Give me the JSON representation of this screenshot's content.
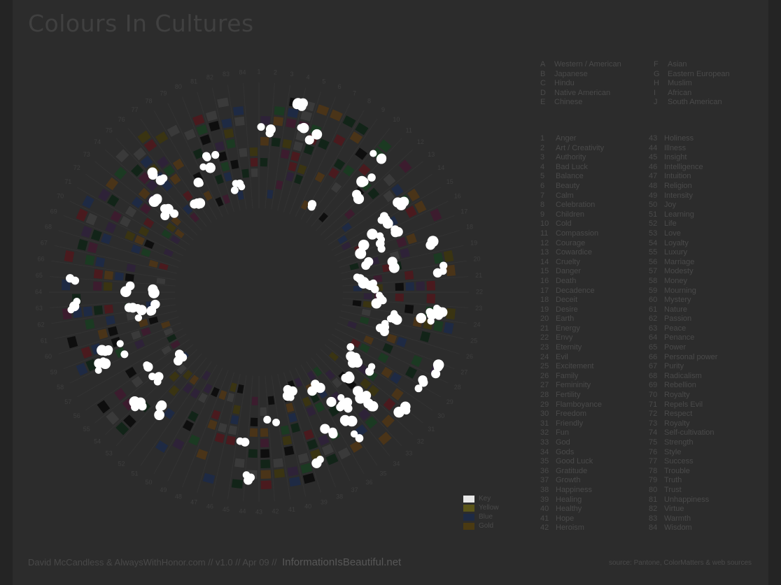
{
  "title": "Colours In Cultures",
  "cultures": [
    {
      "key": "A",
      "name": "Western / American"
    },
    {
      "key": "B",
      "name": "Japanese"
    },
    {
      "key": "C",
      "name": "Hindu"
    },
    {
      "key": "D",
      "name": "Native American"
    },
    {
      "key": "E",
      "name": "Chinese"
    },
    {
      "key": "F",
      "name": "Asian"
    },
    {
      "key": "G",
      "name": "Eastern European"
    },
    {
      "key": "H",
      "name": "Muslim"
    },
    {
      "key": "I",
      "name": "African"
    },
    {
      "key": "J",
      "name": "South American"
    }
  ],
  "topics": [
    "Anger",
    "Art / Creativity",
    "Authority",
    "Bad Luck",
    "Balance",
    "Beauty",
    "Calm",
    "Celebration",
    "Children",
    "Cold",
    "Compassion",
    "Courage",
    "Cowardice",
    "Cruelty",
    "Danger",
    "Death",
    "Decadence",
    "Deceit",
    "Desire",
    "Earth",
    "Energy",
    "Envy",
    "Eternity",
    "Evil",
    "Excitement",
    "Family",
    "Femininity",
    "Fertility",
    "Flamboyance",
    "Freedom",
    "Friendly",
    "Fun",
    "God",
    "Gods",
    "Good Luck",
    "Gratitude",
    "Growth",
    "Happiness",
    "Healing",
    "Healthy",
    "Hope",
    "Heroism",
    "Holiness",
    "Illness",
    "Insight",
    "Intelligence",
    "Intuition",
    "Religion",
    "Intensity",
    "Joy",
    "Learning",
    "Life",
    "Love",
    "Loyalty",
    "Luxury",
    "Marriage",
    "Modesty",
    "Money",
    "Mourning",
    "Mystery",
    "Nature",
    "Passion",
    "Peace",
    "Penance",
    "Power",
    "Personal power",
    "Purity",
    "Radicalism",
    "Rebellion",
    "Royalty",
    "Repels Evil",
    "Respect",
    "Royalty",
    "Self-cultivation",
    "Strength",
    "Style",
    "Success",
    "Trouble",
    "Truth",
    "Trust",
    "Unhappiness",
    "Virtue",
    "Warmth",
    "Wisdom"
  ],
  "legend": [
    {
      "label": "Key",
      "color": "#e8e8e8"
    },
    {
      "label": "Yellow",
      "color": "#5a5418"
    },
    {
      "label": "Blue",
      "color": "#1e2a44"
    },
    {
      "label": "Gold",
      "color": "#4a3a12"
    }
  ],
  "credits": {
    "authors": "David McCandless & AlwaysWithHonor.com",
    "meta": "// v1.0 // Apr 09 //",
    "brand": "InformationIsBeautiful.net"
  },
  "source": "source: Pantone, ColorMatters & web sources",
  "colors": {
    "background": "#2c2c2c",
    "marker": "#ffffff"
  },
  "palette": [
    "#4a1a1e",
    "#1e2a44",
    "#1b3a22",
    "#3a3412",
    "#2e2238",
    "#4a3418",
    "#0e0e0e",
    "#3a3a3a",
    "#3c1c2e",
    "#122418"
  ]
}
